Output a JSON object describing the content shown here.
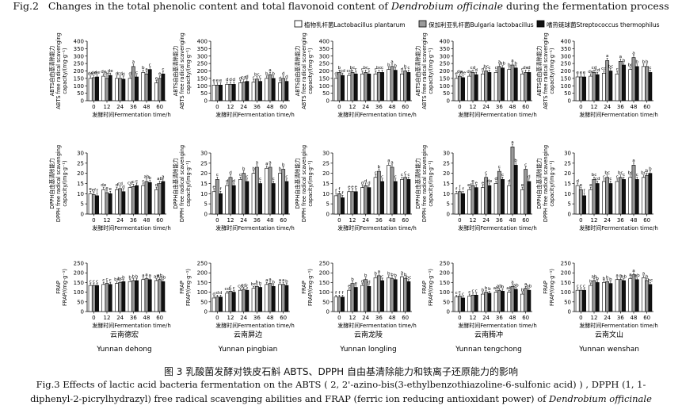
{
  "fig2_caption": {
    "prefix": "Fig.2",
    "text": "Changes in the total phenolic content and total flavonoid content of",
    "italic": "Dendrobium officinale",
    "suffix": "during the fermentation process"
  },
  "legend": [
    {
      "name": "植物乳杆菌Lactobacillus plantarum",
      "color": "#ffffff"
    },
    {
      "name": "保加利亚乳杆菌Bulgaria lactobacillus",
      "color": "#9a9a9a"
    },
    {
      "name": "嗜热链球菌Streptococcus thermophilus",
      "color": "#111111"
    }
  ],
  "row_ylabels": [
    [
      "ABTS自由基清除能力",
      "ABTS free radical scavenging",
      "capacity/(mg·g⁻¹)"
    ],
    [
      "DPPH自由基清除能力",
      "DPPH free radical scavenging",
      "capacity/(mg·g⁻¹)"
    ],
    [
      "FRAP",
      "FRAP/(mg·g⁻¹)"
    ]
  ],
  "xlabel": "发酵时间Fermentation time/h",
  "regions": [
    {
      "cn": "云南德宏",
      "en": "Yunnan dehong"
    },
    {
      "cn": "云南屏边",
      "en": "Yunnan pingbian"
    },
    {
      "cn": "云南龙陵",
      "en": "Yunnan longling"
    },
    {
      "cn": "云南腾冲",
      "en": "Yunnan tengchong"
    },
    {
      "cn": "云南文山",
      "en": "Yunnan wenshan"
    }
  ],
  "fig3_caption_cn": "图 3 乳酸菌发酵对铁皮石斛 ABTS、DPPH 自由基清除能力和铁离子还原能力的影响",
  "fig3_caption_en_1": "Fig.3 Effects of lactic acid bacteria fermentation on the ABTS ( 2, 2'-azino-bis(3-ethylbenzothiazoline-6-sulfonic acid) ) , DPPH (1, 1-",
  "fig3_caption_en_2_prefix": "diphenyl-2-picrylhydrazyl) free radical scavenging abilities and FRAP (ferric ion reducing antioxidant power) of",
  "fig3_caption_en_2_italic": "Dendrobium officinale",
  "chart_data": {
    "type": "bar",
    "x": [
      "0",
      "12",
      "24",
      "36",
      "48",
      "60"
    ],
    "series_names": [
      "植物乳杆菌Lactobacillus plantarum",
      "保加利亚乳杆菌Bulgaria lactobacillus",
      "嗜热链球菌Streptococcus thermophilus"
    ],
    "rows": [
      {
        "metric": "ABTS",
        "yticks": [
          0,
          50,
          100,
          150,
          200,
          250,
          300,
          350,
          400
        ],
        "ylim": [
          0,
          400
        ],
        "panels": [
          {
            "region": "云南德宏",
            "values": [
              [
                150,
                165,
                150,
                150,
                190,
                120
              ],
              [
                155,
                150,
                150,
                230,
                180,
                150
              ],
              [
                160,
                170,
                145,
                160,
                210,
                180
              ]
            ],
            "labels": [
              [
                "de",
                "de",
                "d",
                "d",
                "b",
                "e"
              ],
              [
                "de",
                "de",
                "cd",
                "a",
                "a",
                "e"
              ],
              [
                "de",
                "de",
                "d",
                "c",
                "c",
                "c"
              ]
            ]
          },
          {
            "region": "云南屏边",
            "values": [
              [
                105,
                110,
                120,
                125,
                150,
                120
              ],
              [
                105,
                110,
                125,
                145,
                175,
                150
              ],
              [
                105,
                110,
                130,
                130,
                150,
                130
              ]
            ],
            "labels": [
              [
                "e",
                "d",
                "d",
                "c",
                "b",
                "d"
              ],
              [
                "e",
                "d",
                "cd",
                "bc",
                "a",
                "d"
              ],
              [
                "e",
                "d",
                "d",
                "c",
                "b",
                "d"
              ]
            ]
          },
          {
            "region": "云南龙陵",
            "values": [
              [
                150,
                170,
                180,
                180,
                210,
                180
              ],
              [
                190,
                190,
                190,
                190,
                230,
                200
              ],
              [
                170,
                180,
                180,
                190,
                205,
                190
              ]
            ],
            "labels": [
              [
                "d",
                "cd",
                "c",
                "c",
                "b",
                "d"
              ],
              [
                "b",
                "bc",
                "bc",
                "bc",
                "a",
                "b"
              ],
              [
                "cd",
                "c",
                "c",
                "c",
                "b",
                "c"
              ]
            ]
          },
          {
            "region": "云南腾冲",
            "values": [
              [
                150,
                165,
                180,
                190,
                210,
                180
              ],
              [
                165,
                190,
                200,
                230,
                240,
                190
              ],
              [
                155,
                175,
                190,
                220,
                220,
                190
              ]
            ],
            "labels": [
              [
                "e",
                "de",
                "d",
                "c",
                "b",
                "c"
              ],
              [
                "de",
                "cd",
                "bc",
                "a",
                "a",
                "de"
              ],
              [
                "de",
                "d",
                "c",
                "ab",
                "b",
                "d"
              ]
            ]
          },
          {
            "region": "云南文山",
            "values": [
              [
                160,
                165,
                185,
                180,
                210,
                230
              ],
              [
                160,
                190,
                270,
                265,
                290,
                230
              ],
              [
                160,
                175,
                200,
                240,
                230,
                190
              ]
            ],
            "labels": [
              [
                "e",
                "de",
                "cd",
                "c",
                "bc",
                "b"
              ],
              [
                "e",
                "cd",
                "a",
                "a",
                "a",
                "b"
              ],
              [
                "e",
                "cd",
                "bc",
                "b",
                "b",
                "c"
              ]
            ]
          }
        ]
      },
      {
        "metric": "DPPH",
        "yticks": [
          0,
          5,
          10,
          15,
          20,
          25,
          30
        ],
        "ylim": [
          0,
          30
        ],
        "panels": [
          {
            "region": "云南德宏",
            "values": [
              [
                10,
                12,
                12,
                13,
                14,
                12
              ],
              [
                9.5,
                10.5,
                12.5,
                13.5,
                16,
                15
              ],
              [
                9,
                10,
                11,
                14,
                15.5,
                16
              ]
            ],
            "labels": [
              [
                "e",
                "de",
                "d",
                "cd",
                "c",
                "d"
              ],
              [
                "ef",
                "e",
                "cd",
                "c",
                "ab",
                "ab"
              ],
              [
                "f",
                "e",
                "d",
                "c",
                "b",
                "a"
              ]
            ]
          },
          {
            "region": "云南屏边",
            "values": [
              [
                11,
                14,
                17,
                20,
                22.5,
                20
              ],
              [
                17,
                18,
                20,
                23,
                23,
                22
              ],
              [
                10,
                14,
                16,
                15,
                15,
                16
              ]
            ],
            "labels": [
              [
                "e",
                "d",
                "c",
                "b",
                "a",
                "b"
              ],
              [
                "c",
                "d",
                "b",
                "a",
                "a",
                "b"
              ],
              [
                "f",
                "d",
                "c",
                "c",
                "c",
                "c"
              ]
            ]
          },
          {
            "region": "云南龙陵",
            "values": [
              [
                9,
                11,
                13,
                18,
                24,
                17
              ],
              [
                10,
                11,
                14,
                21,
                23,
                18
              ],
              [
                8,
                11,
                13,
                16,
                16,
                17
              ]
            ],
            "labels": [
              [
                "f",
                "e",
                "d",
                "c",
                "a",
                "c"
              ],
              [
                "f",
                "e",
                "d",
                "b",
                "a",
                "c"
              ],
              [
                "f",
                "e",
                "d",
                "c",
                "c",
                "c"
              ]
            ]
          },
          {
            "region": "云南腾冲",
            "values": [
              [
                10,
                12,
                13,
                15,
                14,
                12
              ],
              [
                11,
                14,
                18,
                21,
                33,
                22
              ],
              [
                10,
                13,
                14,
                17,
                24,
                16
              ]
            ],
            "labels": [
              [
                "f",
                "ef",
                "e",
                "d",
                "d",
                "e"
              ],
              [
                "f",
                "e",
                "c",
                "c",
                "a",
                "c"
              ],
              [
                "f",
                "e",
                "de",
                "c",
                "b",
                "d"
              ]
            ]
          },
          {
            "region": "云南文山",
            "values": [
              [
                14,
                12,
                16,
                16,
                18,
                18
              ],
              [
                12,
                17,
                18,
                18,
                24,
                19
              ],
              [
                9,
                15,
                15,
                17,
                17,
                20
              ]
            ],
            "labels": [
              [
                "d",
                "e",
                "c",
                "c",
                "bc",
                "bc"
              ],
              [
                "e",
                "bc",
                "bc",
                "bc",
                "a",
                "b"
              ],
              [
                "f",
                "cd",
                "c",
                "c",
                "c",
                "b"
              ]
            ]
          }
        ]
      },
      {
        "metric": "FRAP",
        "yticks": [
          0,
          50,
          100,
          150,
          200,
          250
        ],
        "ylim": [
          0,
          250
        ],
        "panels": [
          {
            "region": "云南德宏",
            "values": [
              [
                135,
                140,
                145,
                155,
                165,
                160
              ],
              [
                135,
                145,
                150,
                160,
                170,
                165
              ],
              [
                135,
                140,
                155,
                160,
                165,
                155
              ]
            ],
            "labels": [
              [
                "c",
                "c",
                "bc",
                "b",
                "a",
                "ab"
              ],
              [
                "c",
                "c",
                "bc",
                "b",
                "a",
                "ab"
              ],
              [
                "c",
                "c",
                "b",
                "b",
                "a",
                "ab"
              ]
            ]
          },
          {
            "region": "云南屏边",
            "values": [
              [
                70,
                95,
                110,
                120,
                140,
                140
              ],
              [
                75,
                105,
                115,
                130,
                145,
                140
              ],
              [
                75,
                100,
                110,
                125,
                130,
                135
              ]
            ],
            "labels": [
              [
                "d",
                "cd",
                "cd",
                "bc",
                "a",
                "a"
              ],
              [
                "d",
                "c",
                "cd",
                "b",
                "a",
                "a"
              ],
              [
                "d",
                "c",
                "c",
                "b",
                "b",
                "b"
              ]
            ]
          },
          {
            "region": "云南龙陵",
            "values": [
              [
                75,
                110,
                135,
                175,
                175,
                180
              ],
              [
                75,
                145,
                165,
                185,
                170,
                170
              ],
              [
                75,
                125,
                130,
                160,
                165,
                155
              ]
            ],
            "labels": [
              [
                "f",
                "e",
                "d",
                "b",
                "b",
                "a"
              ],
              [
                "f",
                "b",
                "b",
                "a",
                "b",
                "b"
              ],
              [
                "f",
                "e",
                "d",
                "c",
                "b",
                "bc"
              ]
            ]
          },
          {
            "region": "云南腾冲",
            "values": [
              [
                75,
                80,
                90,
                100,
                100,
                90
              ],
              [
                80,
                85,
                100,
                110,
                130,
                120
              ],
              [
                70,
                85,
                95,
                105,
                115,
                110
              ]
            ],
            "labels": [
              [
                "c",
                "c",
                "b",
                "ab",
                "ab",
                "b"
              ],
              [
                "c",
                "c",
                "b",
                "ab",
                "a",
                "a"
              ],
              [
                "c",
                "c",
                "b",
                "b",
                "ab",
                "ab"
              ]
            ]
          },
          {
            "region": "云南文山",
            "values": [
              [
                110,
                135,
                150,
                165,
                170,
                175
              ],
              [
                110,
                160,
                155,
                165,
                190,
                160
              ],
              [
                110,
                150,
                145,
                160,
                165,
                140
              ]
            ],
            "labels": [
              [
                "c",
                "b",
                "b",
                "a",
                "a",
                "a"
              ],
              [
                "c",
                "ab",
                "b",
                "a",
                "a",
                "b"
              ],
              [
                "c",
                "b",
                "b",
                "ab",
                "ab",
                "bc"
              ]
            ]
          }
        ]
      }
    ]
  }
}
